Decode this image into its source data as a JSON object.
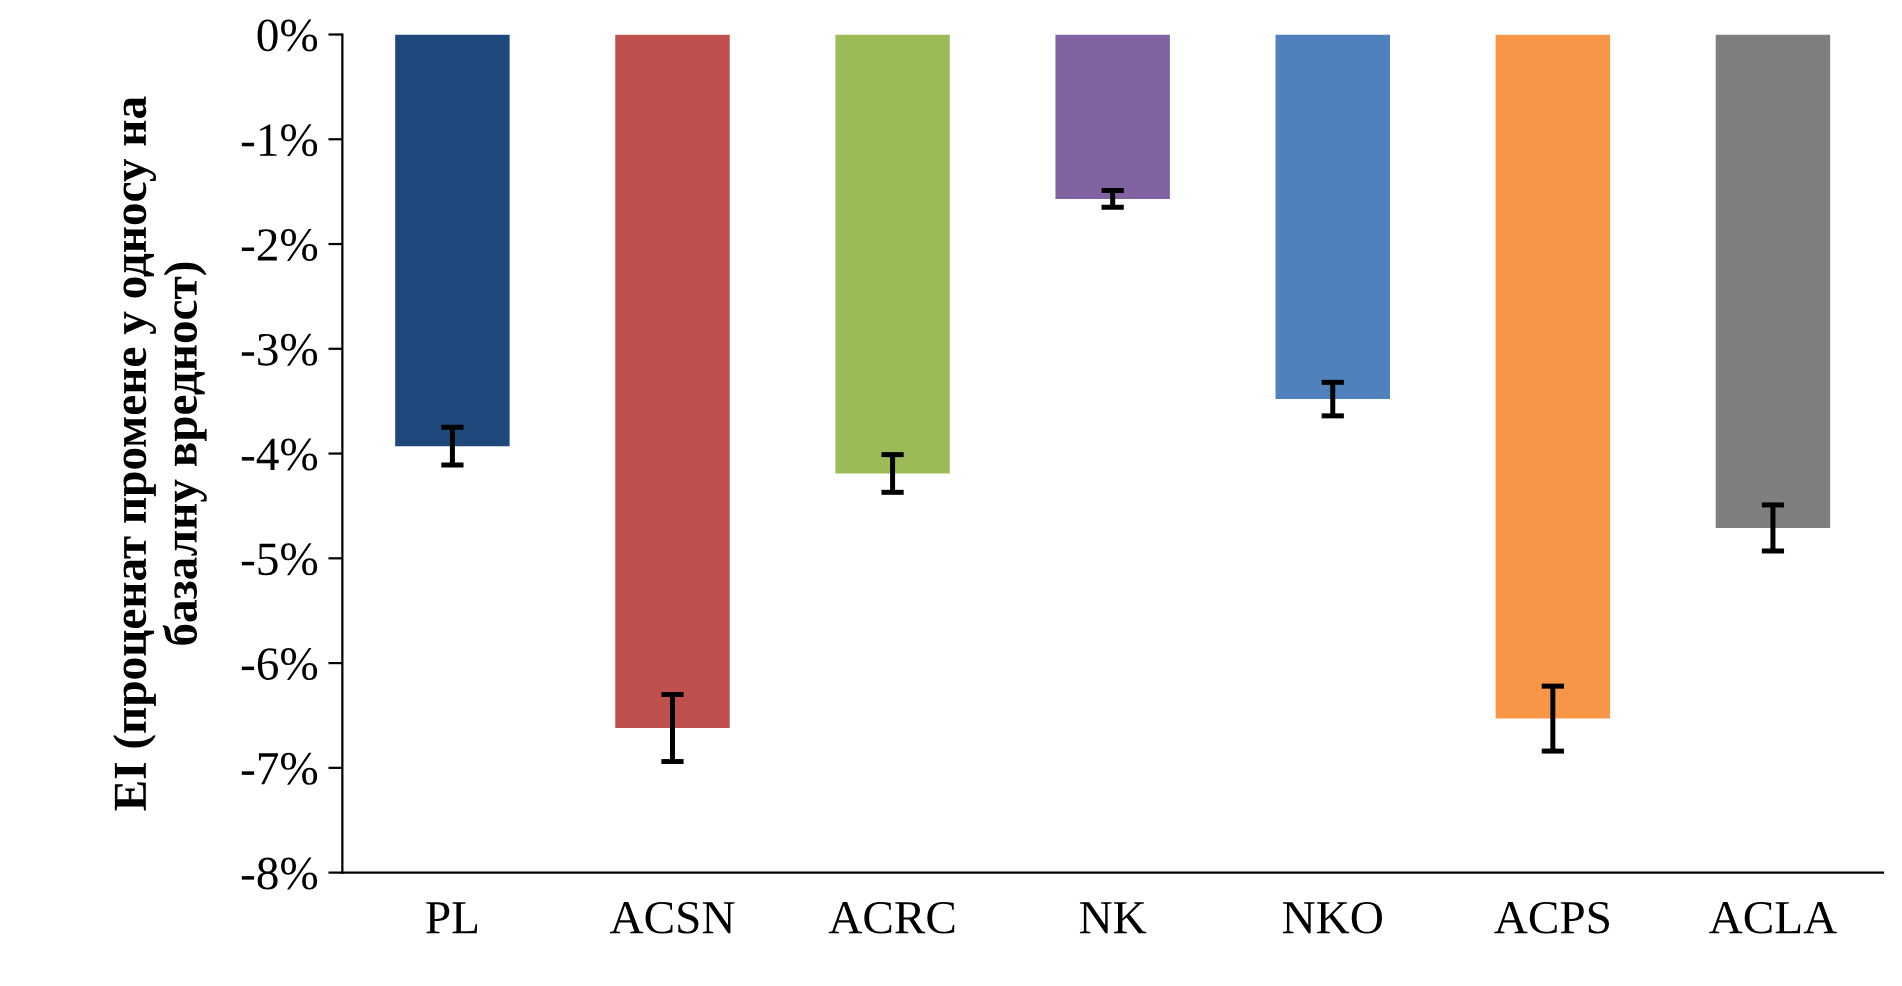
{
  "chart_data": {
    "type": "bar",
    "ylabel": "EI (проценат промене у односу на\nбазалну вредност)",
    "categories": [
      "PL",
      "ACSN",
      "ACRC",
      "NK",
      "NKO",
      "ACPS",
      "ACLA"
    ],
    "values": [
      -3.93,
      -6.62,
      -4.19,
      -1.57,
      -3.48,
      -6.53,
      -4.71
    ],
    "colors": [
      "#1f497d",
      "#c0504d",
      "#9bbb59",
      "#8064a2",
      "#4f81bd",
      "#f79646",
      "#7f7f7f"
    ],
    "errors": [
      0.18,
      0.32,
      0.18,
      0.08,
      0.16,
      0.31,
      0.22
    ],
    "ylim": [
      -8,
      0
    ],
    "yticks": [
      {
        "value": 0,
        "label": "0%"
      },
      {
        "value": -1,
        "label": "-1%"
      },
      {
        "value": -2,
        "label": "-2%"
      },
      {
        "value": -3,
        "label": "-3%"
      },
      {
        "value": -4,
        "label": "-4%"
      },
      {
        "value": -5,
        "label": "-5%"
      },
      {
        "value": -6,
        "label": "-6%"
      },
      {
        "value": -7,
        "label": "-7%"
      },
      {
        "value": -8,
        "label": "-8%"
      }
    ],
    "grid": false
  }
}
